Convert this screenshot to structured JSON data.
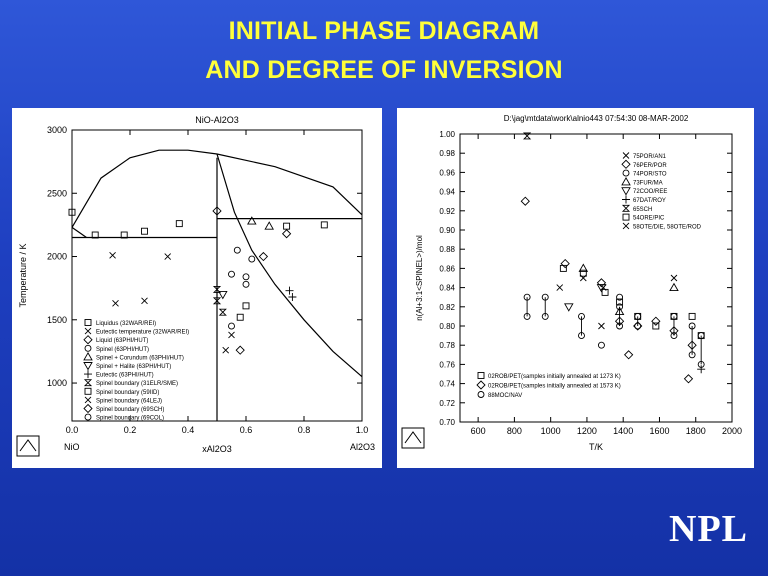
{
  "slide": {
    "title_line1": "INITIAL PHASE DIAGRAM",
    "title_line2": "AND DEGREE OF INVERSION",
    "logo_text": "NPL"
  },
  "chart_data": [
    {
      "type": "scatter",
      "title": "NiO-Al2O3",
      "xlabel": "xAl2O3",
      "ylabel": "Temperature / K",
      "x_endpoint_left": "NiO",
      "x_endpoint_right": "Al2O3",
      "xlim": [
        0,
        1
      ],
      "ylim": [
        700,
        3000
      ],
      "xticks": [
        "0.0",
        "0.2",
        "0.4",
        "0.6",
        "0.8",
        "1.0"
      ],
      "yticks": [
        "1000",
        "1500",
        "2000",
        "2500",
        "3000"
      ],
      "legend": [
        "Liquidus (32WAR/REI)",
        "Eutectic temperature (32WAR/REI)",
        "Liquid (63PHI/HUT)",
        "Spinel (63PHI/HUT)",
        "Spinel + Corundum (63PHI/HUT)",
        "Spinel + Halite (63PHI/HUT)",
        "Eutectic (63PHI/HUT)",
        "Spinel boundary (31ELR/SME)",
        "Spinel boundary (59IID)",
        "Spinel boundary (64LEJ)",
        "Spinel boundary (69SCH)",
        "Spinel boundary (69COL)"
      ],
      "lines": [
        {
          "name": "liquidus",
          "points": [
            [
              0,
              2230
            ],
            [
              0.1,
              2620
            ],
            [
              0.2,
              2780
            ],
            [
              0.3,
              2840
            ],
            [
              0.4,
              2840
            ],
            [
              0.5,
              2810
            ],
            [
              0.7,
              2710
            ],
            [
              0.9,
              2550
            ],
            [
              1.0,
              2330
            ]
          ]
        },
        {
          "name": "eutectic_nio",
          "points": [
            [
              0,
              2150
            ],
            [
              0.5,
              2150
            ]
          ]
        },
        {
          "name": "eutectic_al2o3",
          "points": [
            [
              0.5,
              2300
            ],
            [
              1.0,
              2300
            ]
          ]
        },
        {
          "name": "spinel_left",
          "points": [
            [
              0.5,
              2780
            ],
            [
              0.5,
              700
            ]
          ]
        },
        {
          "name": "spinel_right",
          "points": [
            [
              0.5,
              2810
            ],
            [
              0.56,
              2350
            ],
            [
              0.62,
              2050
            ],
            [
              0.7,
              1780
            ],
            [
              0.8,
              1500
            ],
            [
              0.9,
              1250
            ],
            [
              1.0,
              1050
            ]
          ]
        },
        {
          "name": "liquidus_nio_branch",
          "points": [
            [
              0,
              2230
            ],
            [
              0.05,
              2150
            ]
          ]
        }
      ],
      "points": [
        {
          "series": 0,
          "x": 0.0,
          "y": 2350
        },
        {
          "series": 0,
          "x": 0.08,
          "y": 2170
        },
        {
          "series": 0,
          "x": 0.18,
          "y": 2170
        },
        {
          "series": 0,
          "x": 0.25,
          "y": 2200
        },
        {
          "series": 0,
          "x": 0.37,
          "y": 2260
        },
        {
          "series": 0,
          "x": 0.74,
          "y": 2240
        },
        {
          "series": 0,
          "x": 0.87,
          "y": 2250
        },
        {
          "series": 1,
          "x": 0.14,
          "y": 2010
        },
        {
          "series": 1,
          "x": 0.33,
          "y": 2000
        },
        {
          "series": 1,
          "x": 0.15,
          "y": 1630
        },
        {
          "series": 1,
          "x": 0.25,
          "y": 1650
        },
        {
          "series": 2,
          "x": 0.5,
          "y": 2360
        },
        {
          "series": 2,
          "x": 0.74,
          "y": 2180
        },
        {
          "series": 3,
          "x": 0.57,
          "y": 2050
        },
        {
          "series": 3,
          "x": 0.62,
          "y": 1980
        },
        {
          "series": 3,
          "x": 0.55,
          "y": 1860
        },
        {
          "series": 3,
          "x": 0.6,
          "y": 1840
        },
        {
          "series": 4,
          "x": 0.62,
          "y": 2280
        },
        {
          "series": 4,
          "x": 0.68,
          "y": 2240
        },
        {
          "series": 5,
          "x": 0.52,
          "y": 1700
        },
        {
          "series": 6,
          "x": 0.75,
          "y": 1730
        },
        {
          "series": 6,
          "x": 0.76,
          "y": 1680
        },
        {
          "series": 7,
          "x": 0.5,
          "y": 1740
        },
        {
          "series": 7,
          "x": 0.5,
          "y": 1650
        },
        {
          "series": 7,
          "x": 0.52,
          "y": 1560
        },
        {
          "series": 8,
          "x": 0.58,
          "y": 1520
        },
        {
          "series": 8,
          "x": 0.6,
          "y": 1610
        },
        {
          "series": 9,
          "x": 0.55,
          "y": 1380
        },
        {
          "series": 9,
          "x": 0.53,
          "y": 1260
        },
        {
          "series": 10,
          "x": 0.58,
          "y": 1260
        },
        {
          "series": 10,
          "x": 0.66,
          "y": 2000
        },
        {
          "series": 11,
          "x": 0.55,
          "y": 1450
        },
        {
          "series": 11,
          "x": 0.6,
          "y": 1780
        }
      ]
    },
    {
      "type": "scatter",
      "title": "D:\\jag\\mtdata\\work\\alnio443  07:54:30 08-MAR-2002",
      "xlabel": "T/K",
      "ylabel": "n(Al+3:1<SPINEL>)/mol",
      "xlim": [
        500,
        2000
      ],
      "ylim": [
        0.7,
        1.0
      ],
      "xticks": [
        "600",
        "800",
        "1000",
        "1200",
        "1400",
        "1600",
        "1800",
        "2000"
      ],
      "yticks": [
        "0.70",
        "0.72",
        "0.74",
        "0.76",
        "0.78",
        "0.80",
        "0.82",
        "0.84",
        "0.86",
        "0.88",
        "0.90",
        "0.92",
        "0.94",
        "0.96",
        "0.98",
        "1.00"
      ],
      "legend": [
        "75POR/AN1",
        "76PER/POR",
        "74POR/STO",
        "73FUR/MA",
        "72COO/REE",
        "67DAT/ROY",
        "65SCH",
        "54ORE/PIC",
        "58OTE/DIE, 58OTE/ROD"
      ],
      "legend2": [
        "02ROB/PET(samples initially annealed at 1273 K)",
        "02ROB/PET(samples initially annealed at 1573 K)",
        "88MOC/NAV"
      ],
      "points": [
        {
          "series": 0,
          "x": 1050,
          "y": 0.84
        },
        {
          "series": 0,
          "x": 1280,
          "y": 0.8
        },
        {
          "series": 0,
          "x": 1680,
          "y": 0.85
        },
        {
          "series": 1,
          "x": 860,
          "y": 0.93
        },
        {
          "series": 1,
          "x": 1430,
          "y": 0.77
        },
        {
          "series": 1,
          "x": 1760,
          "y": 0.745
        },
        {
          "series": 2,
          "x": 1280,
          "y": 0.78
        },
        {
          "series": 2,
          "x": 1380,
          "y": 0.83
        },
        {
          "series": 3,
          "x": 1180,
          "y": 0.86
        },
        {
          "series": 3,
          "x": 1380,
          "y": 0.815
        },
        {
          "series": 3,
          "x": 1680,
          "y": 0.84
        },
        {
          "series": 4,
          "x": 1100,
          "y": 0.82
        },
        {
          "series": 4,
          "x": 1280,
          "y": 0.84
        },
        {
          "series": 5,
          "x": 1830,
          "y": 0.755
        },
        {
          "series": 6,
          "x": 870,
          "y": 0.998
        },
        {
          "series": 7,
          "x": 1300,
          "y": 0.835
        },
        {
          "series": 8,
          "x": 1180,
          "y": 0.85
        },
        {
          "series": 8,
          "x": 1290,
          "y": 0.84
        }
      ],
      "points2": [
        {
          "series": 0,
          "x": 1070,
          "y": 0.86
        },
        {
          "series": 0,
          "x": 1180,
          "y": 0.855
        },
        {
          "series": 0,
          "x": 1380,
          "y": 0.825
        },
        {
          "series": 0,
          "x": 1480,
          "y": 0.81
        },
        {
          "series": 0,
          "x": 1580,
          "y": 0.8
        },
        {
          "series": 0,
          "x": 1680,
          "y": 0.81
        },
        {
          "series": 0,
          "x": 1780,
          "y": 0.81
        },
        {
          "series": 0,
          "x": 1830,
          "y": 0.79
        },
        {
          "series": 1,
          "x": 1080,
          "y": 0.865
        },
        {
          "series": 1,
          "x": 1280,
          "y": 0.845
        },
        {
          "series": 1,
          "x": 1380,
          "y": 0.805
        },
        {
          "series": 1,
          "x": 1480,
          "y": 0.8
        },
        {
          "series": 1,
          "x": 1580,
          "y": 0.805
        },
        {
          "series": 1,
          "x": 1680,
          "y": 0.795
        },
        {
          "series": 1,
          "x": 1780,
          "y": 0.78
        }
      ],
      "tielines": [
        {
          "x": 870,
          "y": [
            0.81,
            0.83
          ]
        },
        {
          "x": 970,
          "y": [
            0.81,
            0.83
          ]
        },
        {
          "x": 1170,
          "y": [
            0.79,
            0.81
          ]
        },
        {
          "x": 1380,
          "y": [
            0.8,
            0.82
          ]
        },
        {
          "x": 1480,
          "y": [
            0.8,
            0.81
          ]
        },
        {
          "x": 1680,
          "y": [
            0.79,
            0.81
          ]
        },
        {
          "x": 1780,
          "y": [
            0.77,
            0.8
          ]
        },
        {
          "x": 1830,
          "y": [
            0.76,
            0.79
          ]
        }
      ]
    }
  ]
}
